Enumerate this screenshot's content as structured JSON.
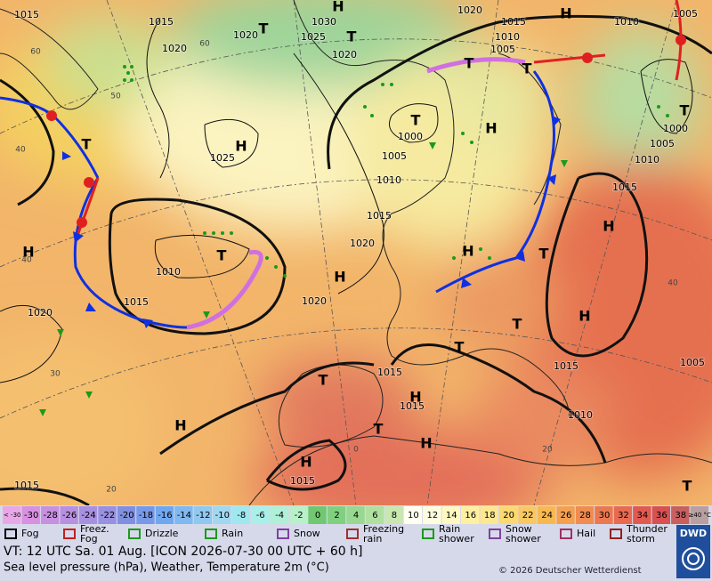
{
  "map": {
    "isobar_labels": [
      "1015",
      "1015",
      "1020",
      "1020",
      "1030",
      "1025",
      "1020",
      "1020",
      "1015",
      "1010",
      "1005",
      "1010",
      "1005",
      "1025",
      "1000",
      "1005",
      "1010",
      "1015",
      "1020",
      "1010",
      "1015",
      "1020",
      "1020",
      "1000",
      "1005",
      "1010",
      "1015",
      "1015",
      "1015",
      "1015",
      "1010",
      "1005",
      "1015",
      "1015"
    ],
    "centers": [
      "H",
      "H",
      "H",
      "H",
      "H",
      "H",
      "H",
      "H",
      "H",
      "H",
      "H",
      "H",
      "H",
      "T",
      "T",
      "T",
      "T",
      "T",
      "T",
      "T",
      "T",
      "T",
      "T",
      "T",
      "T",
      "T",
      "T"
    ],
    "grid_labels": [
      "60",
      "60",
      "50",
      "40",
      "40",
      "30",
      "20",
      "0",
      "20",
      "40"
    ]
  },
  "legend": {
    "scale": [
      "< -30",
      "-30",
      "-28",
      "-26",
      "-24",
      "-22",
      "-20",
      "-18",
      "-16",
      "-14",
      "-12",
      "-10",
      "-8",
      "-6",
      "-4",
      "-2",
      "0",
      "2",
      "4",
      "6",
      "8",
      "10",
      "12",
      "14",
      "16",
      "18",
      "20",
      "22",
      "24",
      "26",
      "28",
      "30",
      "32",
      "34",
      "36",
      "38",
      "≥40 °C"
    ],
    "scale_colors": [
      "#e8a8e8",
      "#d890e0",
      "#c890e0",
      "#b890e0",
      "#a890e0",
      "#9890e0",
      "#8090e0",
      "#7898e8",
      "#70a8f0",
      "#80b8f0",
      "#90c8f0",
      "#a0d8f0",
      "#a0e8f0",
      "#a8f0e8",
      "#b0f0d8",
      "#b8f0c8",
      "#70c870",
      "#80d080",
      "#98d890",
      "#b0e0a0",
      "#c8e8b0",
      "#fffff0",
      "#fffde0",
      "#fff8c0",
      "#fff0a0",
      "#fde890",
      "#fcd870",
      "#fac860",
      "#f8b850",
      "#f4a050",
      "#f08c50",
      "#ec7850",
      "#e86a50",
      "#e05a50",
      "#d85050",
      "#c86060",
      "#b8a0a0"
    ],
    "weather": [
      [
        "Fog"
      ],
      [
        "Freez.",
        "Fog"
      ],
      [
        "Drizzle"
      ],
      [
        "Rain"
      ],
      [
        "Snow"
      ],
      [
        "Freezing",
        "rain"
      ],
      [
        "Rain",
        "shower"
      ],
      [
        "Snow",
        "shower"
      ],
      [
        "Hail"
      ],
      [
        "Thunder",
        "storm"
      ]
    ]
  },
  "footer": {
    "valid_time": "VT: 12 UTC Sa.  01 Aug. [ICON 2026-07-30  00 UTC + 60 h]",
    "description": "Sea level pressure (hPa), Weather, Temperature 2m (°C)",
    "copyright": "© 2026 Deutscher Wetterdienst",
    "logo": "DWD"
  }
}
